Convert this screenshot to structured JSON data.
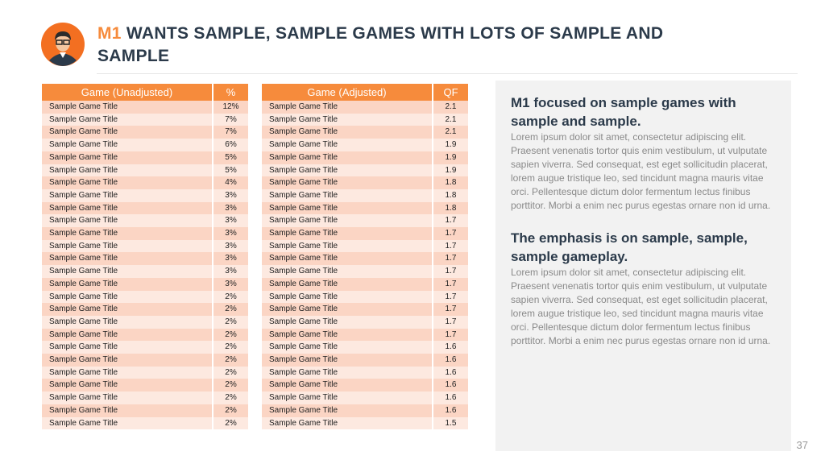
{
  "header": {
    "title_highlight": "M1",
    "title_rest": "WANTS SAMPLE, SAMPLE GAMES WITH LOTS OF SAMPLE AND SAMPLE"
  },
  "tables": [
    {
      "columns": [
        "Game (Unadjusted)",
        "%"
      ],
      "rows": [
        [
          "Sample Game Title",
          "12%"
        ],
        [
          "Sample Game Title",
          "7%"
        ],
        [
          "Sample Game Title",
          "7%"
        ],
        [
          "Sample Game Title",
          "6%"
        ],
        [
          "Sample Game Title",
          "5%"
        ],
        [
          "Sample Game Title",
          "5%"
        ],
        [
          "Sample Game Title",
          "4%"
        ],
        [
          "Sample Game Title",
          "3%"
        ],
        [
          "Sample Game Title",
          "3%"
        ],
        [
          "Sample Game Title",
          "3%"
        ],
        [
          "Sample Game Title",
          "3%"
        ],
        [
          "Sample Game Title",
          "3%"
        ],
        [
          "Sample Game Title",
          "3%"
        ],
        [
          "Sample Game Title",
          "3%"
        ],
        [
          "Sample Game Title",
          "3%"
        ],
        [
          "Sample Game Title",
          "2%"
        ],
        [
          "Sample Game Title",
          "2%"
        ],
        [
          "Sample Game Title",
          "2%"
        ],
        [
          "Sample Game Title",
          "2%"
        ],
        [
          "Sample Game Title",
          "2%"
        ],
        [
          "Sample Game Title",
          "2%"
        ],
        [
          "Sample Game Title",
          "2%"
        ],
        [
          "Sample Game Title",
          "2%"
        ],
        [
          "Sample Game Title",
          "2%"
        ],
        [
          "Sample Game Title",
          "2%"
        ],
        [
          "Sample Game Title",
          "2%"
        ]
      ]
    },
    {
      "columns": [
        "Game (Adjusted)",
        "QF"
      ],
      "rows": [
        [
          "Sample Game Title",
          "2.1"
        ],
        [
          "Sample Game Title",
          "2.1"
        ],
        [
          "Sample Game Title",
          "2.1"
        ],
        [
          "Sample Game Title",
          "1.9"
        ],
        [
          "Sample Game Title",
          "1.9"
        ],
        [
          "Sample Game Title",
          "1.9"
        ],
        [
          "Sample Game Title",
          "1.8"
        ],
        [
          "Sample Game Title",
          "1.8"
        ],
        [
          "Sample Game Title",
          "1.8"
        ],
        [
          "Sample Game Title",
          "1.7"
        ],
        [
          "Sample Game Title",
          "1.7"
        ],
        [
          "Sample Game Title",
          "1.7"
        ],
        [
          "Sample Game Title",
          "1.7"
        ],
        [
          "Sample Game Title",
          "1.7"
        ],
        [
          "Sample Game Title",
          "1.7"
        ],
        [
          "Sample Game Title",
          "1.7"
        ],
        [
          "Sample Game Title",
          "1.7"
        ],
        [
          "Sample Game Title",
          "1.7"
        ],
        [
          "Sample Game Title",
          "1.7"
        ],
        [
          "Sample Game Title",
          "1.6"
        ],
        [
          "Sample Game Title",
          "1.6"
        ],
        [
          "Sample Game Title",
          "1.6"
        ],
        [
          "Sample Game Title",
          "1.6"
        ],
        [
          "Sample Game Title",
          "1.6"
        ],
        [
          "Sample Game Title",
          "1.6"
        ],
        [
          "Sample Game Title",
          "1.5"
        ]
      ]
    }
  ],
  "panel": [
    {
      "heading": "M1 focused on sample games with sample and sample.",
      "body": "Lorem ipsum dolor sit amet, consectetur adipiscing elit. Praesent venenatis tortor quis enim vestibulum, ut vulputate sapien viverra. Sed consequat, est eget sollicitudin placerat, lorem augue tristique leo, sed tincidunt magna mauris vitae orci. Pellentesque dictum dolor fermentum lectus finibus porttitor. Morbi a enim nec purus egestas ornare non id urna."
    },
    {
      "heading": "The emphasis is on sample, sample, sample gameplay.",
      "body": "Lorem ipsum dolor sit amet, consectetur adipiscing elit. Praesent venenatis tortor quis enim vestibulum, ut vulputate sapien viverra. Sed consequat, est eget sollicitudin placerat, lorem augue tristique leo, sed tincidunt magna mauris vitae orci. Pellentesque dictum dolor fermentum lectus finibus porttitor. Morbi a enim nec purus egestas ornare non id urna."
    }
  ],
  "page_number": "37"
}
